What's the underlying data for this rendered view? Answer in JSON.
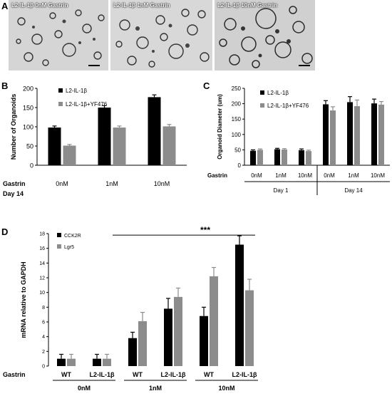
{
  "panel_a": {
    "letter": "A",
    "images": [
      {
        "label": "L2-IL-1β 0nM Gastrin"
      },
      {
        "label": "L2-IL-1β 1nM Gastrin"
      },
      {
        "label": "L2-IL-1β 10nM Gastrin"
      }
    ]
  },
  "panel_b_letter": "B",
  "panel_c_letter": "C",
  "panel_d_letter": "D",
  "chart_data": [
    {
      "type": "bar",
      "ylabel": "Number of Organoids",
      "ylim": [
        0,
        200
      ],
      "yticks": [
        0,
        50,
        100,
        150,
        200
      ],
      "categories": [
        "0nM",
        "1nM",
        "10nM"
      ],
      "row_label_1": "Gastrin",
      "row_label_2": "Day 14",
      "series": [
        {
          "name": "L2-IL-1β",
          "color": "#000000",
          "values": [
            98,
            150,
            177
          ],
          "errors": [
            4,
            5,
            6
          ]
        },
        {
          "name": "L2-IL-1β+YF476",
          "color": "#8c8c8c",
          "values": [
            51,
            98,
            101
          ],
          "errors": [
            3,
            4,
            5
          ]
        }
      ],
      "legend": "top-left"
    },
    {
      "type": "bar",
      "ylabel": "Organoid Diameter (um)",
      "ylim": [
        0,
        250
      ],
      "yticks": [
        0,
        50,
        100,
        150,
        200,
        250
      ],
      "categories": [
        "0nM",
        "1nM",
        "10nM",
        "0nM",
        "1nM",
        "10nM"
      ],
      "row_label": "Gastrin",
      "groups": [
        {
          "label": "Day 1"
        },
        {
          "label": "Day 14"
        }
      ],
      "series": [
        {
          "name": "L2-IL-1β",
          "color": "#000000",
          "values": [
            47,
            52,
            49,
            198,
            205,
            201
          ],
          "errors": [
            3,
            3,
            4,
            12,
            18,
            14
          ]
        },
        {
          "name": "L2-IL-1β+YF476",
          "color": "#8c8c8c",
          "values": [
            50,
            51,
            46,
            178,
            192,
            197
          ],
          "errors": [
            3,
            3,
            3,
            12,
            20,
            10
          ]
        }
      ],
      "legend": "top-left"
    },
    {
      "type": "bar",
      "ylabel": "mRNA relative to GAPDH",
      "ylim": [
        0,
        18
      ],
      "yticks": [
        0,
        2,
        4,
        6,
        8,
        10,
        12,
        14,
        16,
        18
      ],
      "categories": [
        "WT",
        "L2-IL-1β",
        "WT",
        "L2-IL-1β",
        "WT",
        "L2-IL-1β"
      ],
      "row_label": "Gastrin",
      "groups": [
        {
          "label": "0nM"
        },
        {
          "label": "1nM"
        },
        {
          "label": "10nM"
        }
      ],
      "series": [
        {
          "name": "CCK2R",
          "color": "#000000",
          "values": [
            1.0,
            1.0,
            3.8,
            7.8,
            6.8,
            16.5
          ],
          "errors": [
            0.6,
            0.6,
            0.8,
            1.4,
            1.2,
            1.2
          ]
        },
        {
          "name": "Lgr5",
          "color": "#8c8c8c",
          "values": [
            1.0,
            1.0,
            6.1,
            9.4,
            12.2,
            10.3
          ],
          "errors": [
            0.6,
            0.6,
            1.2,
            1.2,
            1.2,
            1.5
          ]
        }
      ],
      "significance": "***",
      "legend": "top-left"
    }
  ]
}
